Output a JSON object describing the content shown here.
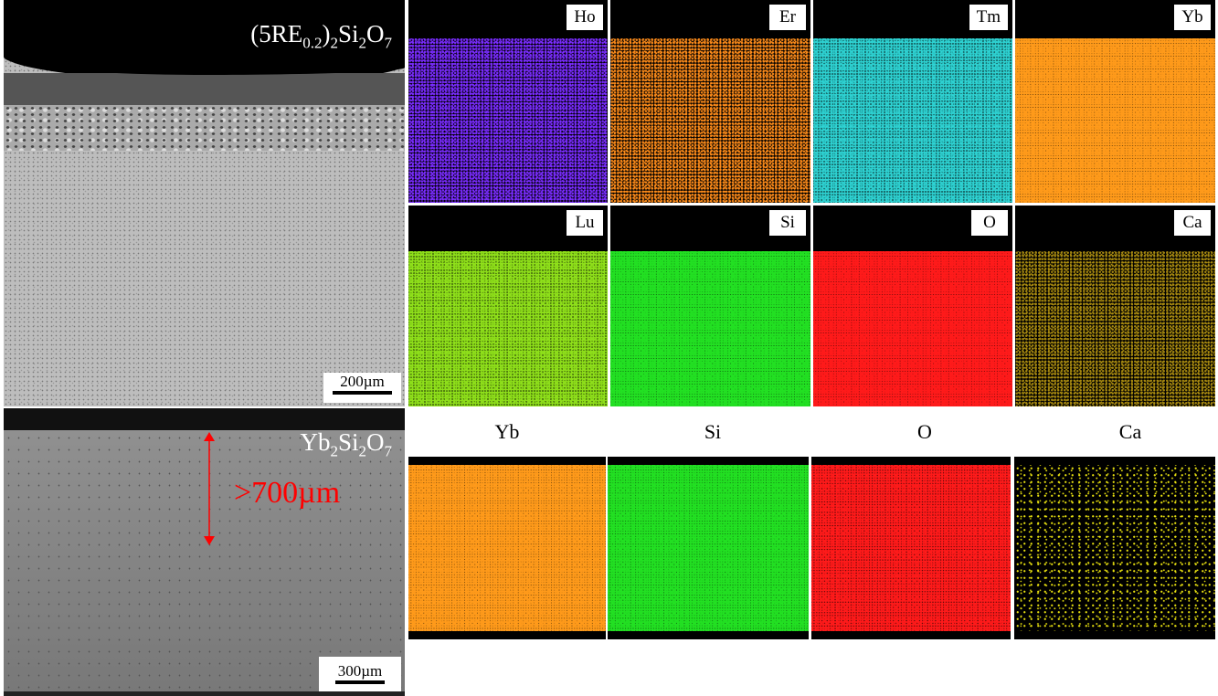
{
  "panels": {
    "top_sem": {
      "title_base": "(5RE",
      "title_sub1": "0.2",
      "title_mid": ")",
      "title_sub2": "2",
      "title_si": "Si",
      "title_sub3": "2",
      "title_o": "O",
      "title_sub4": "7",
      "scale": "200µm"
    },
    "bottom_sem": {
      "title_yb": "Yb",
      "title_sub1": "2",
      "title_si": "Si",
      "title_sub2": "2",
      "title_o": "O",
      "title_sub3": "7",
      "depth_label": ">700µm",
      "scale": "300µm",
      "arrow_color": "#ff0000"
    }
  },
  "top_maps": [
    {
      "element": "Ho",
      "color": "#7a2cff",
      "density": 0.45
    },
    {
      "element": "Er",
      "color": "#ff8c1a",
      "density": 0.4
    },
    {
      "element": "Tm",
      "color": "#2ed3d3",
      "density": 0.65
    },
    {
      "element": "Yb",
      "color": "#ff9a1a",
      "density": 0.8
    },
    {
      "element": "Lu",
      "color": "#8fe01a",
      "density": 0.7
    },
    {
      "element": "Si",
      "color": "#22e022",
      "density": 0.8
    },
    {
      "element": "O",
      "color": "#ff1a1a",
      "density": 0.8
    },
    {
      "element": "Ca",
      "color": "#a88a10",
      "density": 0.35
    }
  ],
  "bottom_maps": [
    {
      "element": "Yb",
      "color": "#ff9a1a",
      "density": 0.8
    },
    {
      "element": "Si",
      "color": "#22e022",
      "density": 0.8
    },
    {
      "element": "O",
      "color": "#ff1a1a",
      "density": 0.75
    },
    {
      "element": "Ca",
      "color": "#e8e010",
      "density": 0.25
    }
  ]
}
